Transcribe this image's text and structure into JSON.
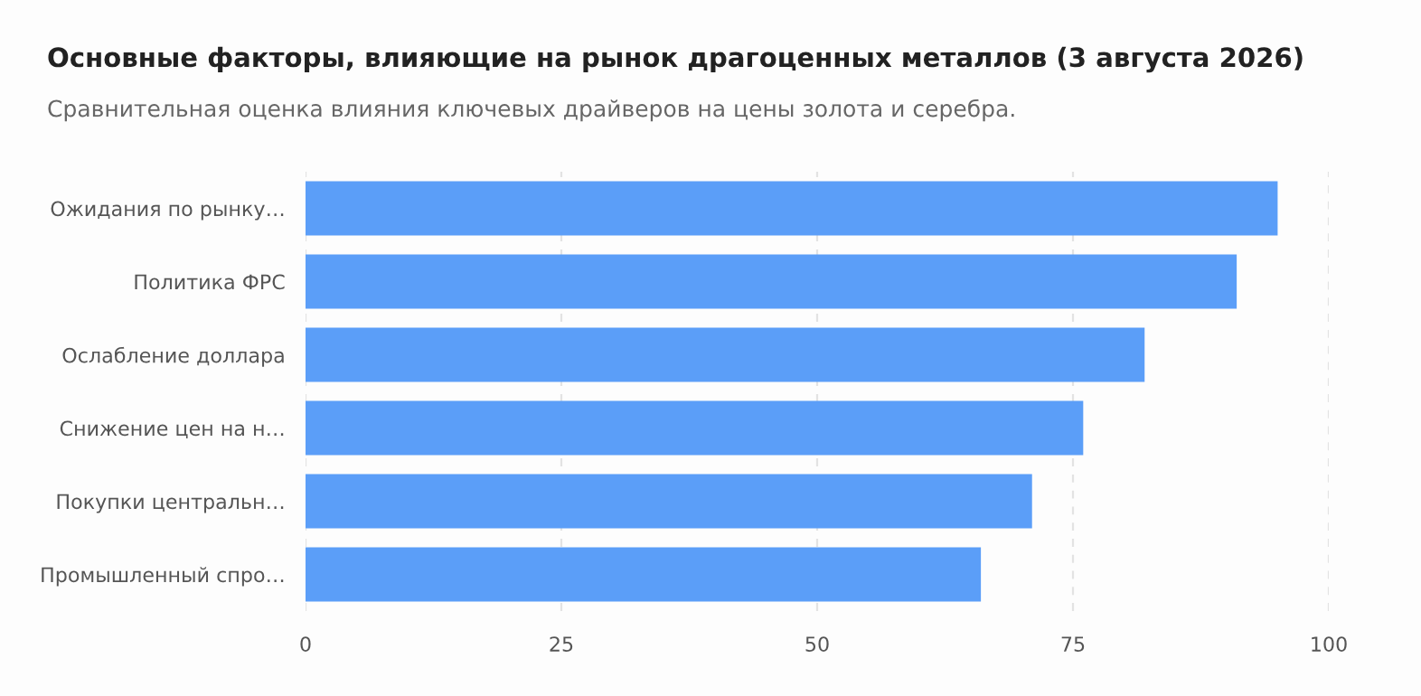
{
  "chart_data": {
    "type": "bar",
    "orientation": "horizontal",
    "title": "Основные факторы, влияющие на рынок драгоценных металлов (3 августа 2026)",
    "subtitle": "Сравнительная оценка влияния ключевых драйверов на цены золота и серебра.",
    "categories": [
      "Ожидания по рынку…",
      "Политика ФРС",
      "Ослабление доллара",
      "Снижение цен на н…",
      "Покупки центральн…",
      "Промышленный спро…"
    ],
    "values": [
      95,
      91,
      82,
      76,
      71,
      66
    ],
    "color": "#5b9ef8",
    "xlim": [
      0,
      100
    ],
    "xticks": [
      0,
      25,
      50,
      75,
      100
    ],
    "grid": "x"
  }
}
